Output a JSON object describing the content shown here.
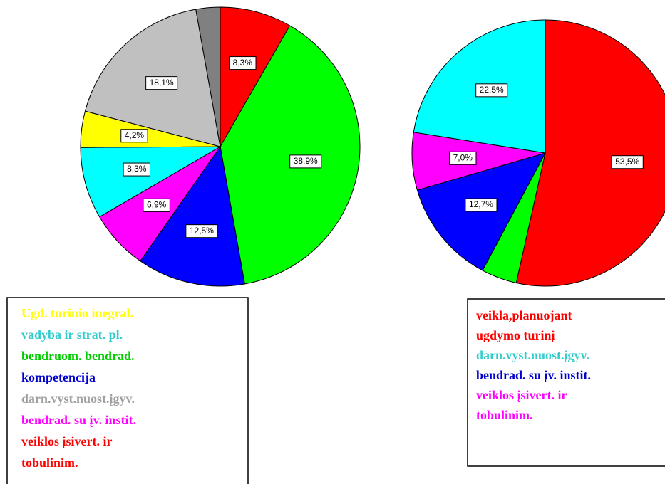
{
  "chart_data": [
    {
      "type": "pie",
      "values": [
        8.3,
        38.9,
        12.5,
        6.9,
        8.3,
        4.2,
        18.1,
        2.8
      ],
      "value_labels": [
        "8,3%",
        "38,9%",
        "12,5%",
        "6,9%",
        "8,3%",
        "4,2%",
        "18,1%",
        null
      ],
      "colors": [
        "#ff0000",
        "#00ff00",
        "#0000ff",
        "#ff00ff",
        "#00ffff",
        "#ffff00",
        "#c0c0c0",
        "#808080"
      ],
      "legend": [
        {
          "lines": [
            "Ugd. turinio inegral."
          ],
          "color": "#ffff00"
        },
        {
          "lines": [
            "vadyba ir strat. pl."
          ],
          "color": "#33cccc"
        },
        {
          "lines": [
            "bendruom. bendrad."
          ],
          "color": "#00cc00"
        },
        {
          "lines": [
            "kompetencija"
          ],
          "color": "#0000cc"
        },
        {
          "lines": [
            "darn.vyst.nuost.įgyv."
          ],
          "color": "#a0a0a0"
        },
        {
          "lines": [
            "bendrad. su įv. instit."
          ],
          "color": "#ff00ff"
        },
        {
          "lines": [
            "veiklos įsivert. ir",
            "tobulinim."
          ],
          "color": "#ff0000"
        }
      ]
    },
    {
      "type": "pie",
      "values": [
        53.5,
        4.3,
        12.7,
        7.0,
        22.5
      ],
      "value_labels": [
        "53,5%",
        null,
        "12,7%",
        "7,0%",
        "22,5%"
      ],
      "colors": [
        "#ff0000",
        "#00ff00",
        "#0000ff",
        "#ff00ff",
        "#00ffff"
      ],
      "legend": [
        {
          "lines": [
            "veikla,planuojant",
            "ugdymo turinį"
          ],
          "color": "#ff0000"
        },
        {
          "lines": [
            "darn.vyst.nuost.įgyv."
          ],
          "color": "#33cccc"
        },
        {
          "lines": [
            "bendrad. su įv. instit."
          ],
          "color": "#0000cc"
        },
        {
          "lines": [
            "veiklos įsivert. ir",
            "tobulinim."
          ],
          "color": "#ff00ff"
        }
      ]
    }
  ]
}
